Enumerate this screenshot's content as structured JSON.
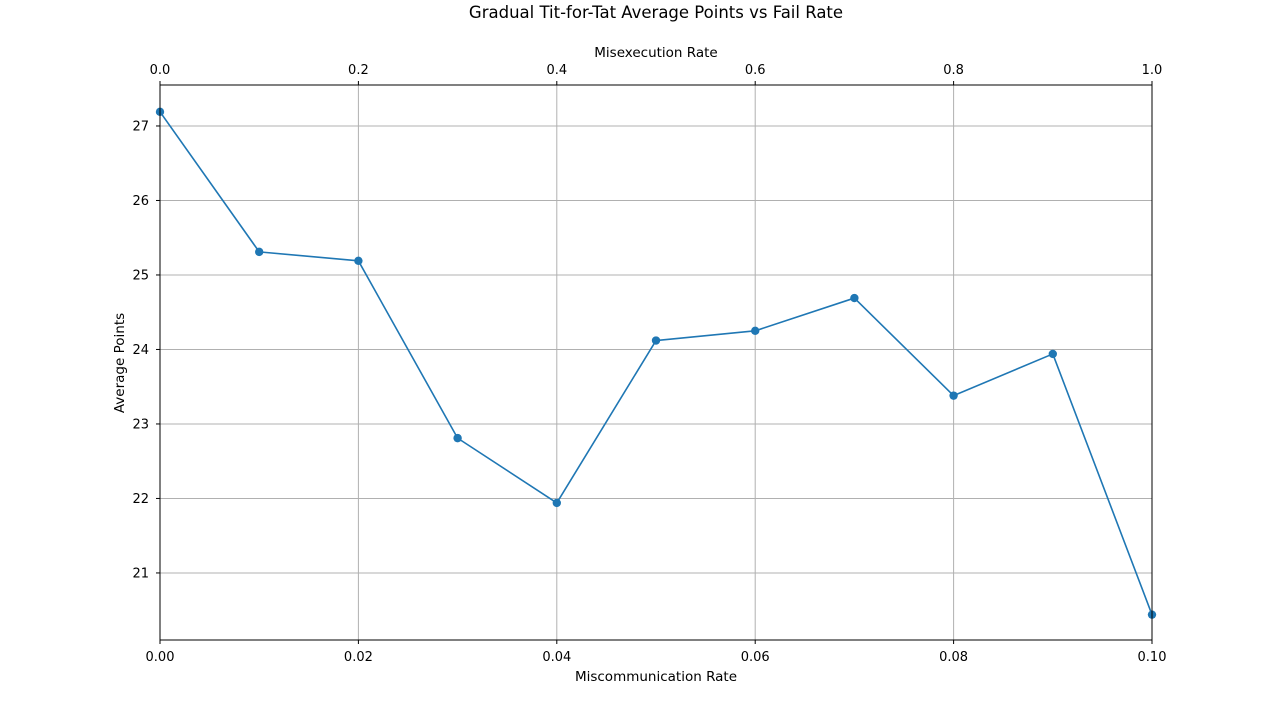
{
  "chart_data": {
    "type": "line",
    "title": "Gradual Tit-for-Tat Average Points vs Fail Rate",
    "xlabel": "Miscommunication Rate",
    "ylabel": "Average Points",
    "x2label": "Misexecution Rate",
    "xlim": [
      0,
      0.1
    ],
    "x2lim": [
      0,
      1
    ],
    "ylim": [
      20.1,
      27.55
    ],
    "grid": true,
    "x_ticks": [
      "0.00",
      "0.02",
      "0.04",
      "0.06",
      "0.08",
      "0.10"
    ],
    "x_tick_values": [
      0,
      0.02,
      0.04,
      0.06,
      0.08,
      0.1
    ],
    "x2_ticks": [
      "0.0",
      "0.2",
      "0.4",
      "0.6",
      "0.8",
      "1.0"
    ],
    "x2_tick_values": [
      0,
      0.2,
      0.4,
      0.6,
      0.8,
      1.0
    ],
    "y_ticks": [
      "21",
      "22",
      "23",
      "24",
      "25",
      "26",
      "27"
    ],
    "y_tick_values": [
      21,
      22,
      23,
      24,
      25,
      26,
      27
    ],
    "series": [
      {
        "color": "#1f77b4",
        "marker": "circle",
        "x": [
          0,
          0.01,
          0.02,
          0.03,
          0.04,
          0.05,
          0.06,
          0.07,
          0.08,
          0.09,
          0.1
        ],
        "y": [
          27.19,
          25.31,
          25.19,
          22.81,
          21.94,
          24.12,
          24.25,
          24.69,
          23.38,
          23.94,
          20.44
        ]
      }
    ]
  }
}
